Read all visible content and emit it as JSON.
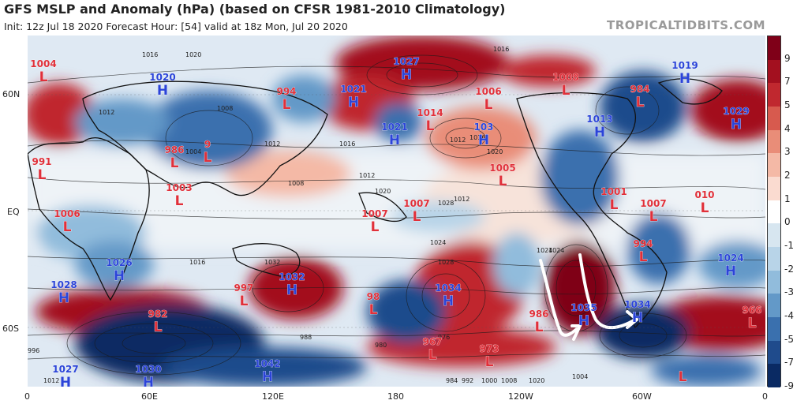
{
  "header": {
    "title": "GFS MSLP and Anomaly (hPa) (based on CFSR 1981-2010 Climatology)",
    "subtitle": "Init: 12z Jul 18 2020   Forecast Hour: [54]   valid at 18z Mon, Jul 20 2020",
    "brand": "TROPICALTIDBITS.COM"
  },
  "axes": {
    "lat_labels": [
      "60N",
      "EQ",
      "60S"
    ],
    "lon_labels": [
      "0",
      "60E",
      "120E",
      "180",
      "120W",
      "60W",
      "0"
    ]
  },
  "colorbar": {
    "labels": [
      "9",
      "7",
      "5",
      "4",
      "3",
      "2",
      "1",
      "0",
      "-1",
      "-2",
      "-3",
      "-4",
      "-5",
      "-7",
      "-9"
    ],
    "colors": [
      "#7f0018",
      "#a3101f",
      "#c0282f",
      "#d75a4e",
      "#e98d78",
      "#f4b9a6",
      "#fadbd0",
      "#ffffff",
      "#d7e6f0",
      "#b8d4e8",
      "#91bcdc",
      "#6399c8",
      "#3a70ae",
      "#1f4b8c",
      "#0a2a63"
    ]
  },
  "pressure_centers": [
    {
      "type": "L",
      "value": "1004",
      "color": "#e0303a"
    },
    {
      "type": "H",
      "value": "1020",
      "color": "#2b44d8"
    },
    {
      "type": "L",
      "value": "994",
      "color": "#e0303a"
    },
    {
      "type": "H",
      "value": "1021",
      "color": "#2b44d8"
    },
    {
      "type": "H",
      "value": "1027",
      "color": "#2b44d8"
    },
    {
      "type": "L",
      "value": "1006",
      "color": "#e0303a"
    },
    {
      "type": "L",
      "value": "1008",
      "color": "#e0303a"
    },
    {
      "type": "H",
      "value": "1019",
      "color": "#2b44d8"
    },
    {
      "type": "L",
      "value": "984",
      "color": "#e0303a"
    },
    {
      "type": "H",
      "value": "1029",
      "color": "#2b44d8"
    },
    {
      "type": "H",
      "value": "1013",
      "color": "#2b44d8"
    },
    {
      "type": "L",
      "value": "1014",
      "color": "#e0303a"
    },
    {
      "type": "H",
      "value": "1021",
      "color": "#2b44d8"
    },
    {
      "type": "H",
      "value": "103",
      "color": "#2b44d8"
    },
    {
      "type": "L",
      "value": "991",
      "color": "#e0303a"
    },
    {
      "type": "L",
      "value": "986",
      "color": "#e0303a"
    },
    {
      "type": "L",
      "value": "9",
      "color": "#e0303a"
    },
    {
      "type": "L",
      "value": "1003",
      "color": "#e0303a"
    },
    {
      "type": "L",
      "value": "1005",
      "color": "#e0303a"
    },
    {
      "type": "L",
      "value": "1006",
      "color": "#e0303a"
    },
    {
      "type": "L",
      "value": "1007",
      "color": "#e0303a"
    },
    {
      "type": "L",
      "value": "1007",
      "color": "#e0303a"
    },
    {
      "type": "L",
      "value": "1001",
      "color": "#e0303a"
    },
    {
      "type": "L",
      "value": "1007",
      "color": "#e0303a"
    },
    {
      "type": "L",
      "value": "010",
      "color": "#e0303a"
    },
    {
      "type": "L",
      "value": "994",
      "color": "#e0303a"
    },
    {
      "type": "H",
      "value": "1024",
      "color": "#2b44d8"
    },
    {
      "type": "H",
      "value": "1026",
      "color": "#2b44d8"
    },
    {
      "type": "H",
      "value": "1028",
      "color": "#2b44d8"
    },
    {
      "type": "L",
      "value": "997",
      "color": "#e0303a"
    },
    {
      "type": "H",
      "value": "1032",
      "color": "#2b44d8"
    },
    {
      "type": "H",
      "value": "1034",
      "color": "#2b44d8"
    },
    {
      "type": "L",
      "value": "98",
      "color": "#e0303a"
    },
    {
      "type": "L",
      "value": "982",
      "color": "#e0303a"
    },
    {
      "type": "L",
      "value": "986",
      "color": "#e0303a"
    },
    {
      "type": "H",
      "value": "1035",
      "color": "#2b44d8"
    },
    {
      "type": "H",
      "value": "1034",
      "color": "#2b44d8"
    },
    {
      "type": "L",
      "value": "966",
      "color": "#e0303a"
    },
    {
      "type": "L",
      "value": "967",
      "color": "#e0303a"
    },
    {
      "type": "L",
      "value": "973",
      "color": "#e0303a"
    },
    {
      "type": "H",
      "value": "1027",
      "color": "#2b44d8"
    },
    {
      "type": "H",
      "value": "1030",
      "color": "#2b44d8"
    },
    {
      "type": "H",
      "value": "1042",
      "color": "#2b44d8"
    },
    {
      "type": "L",
      "value": "",
      "color": "#e0303a"
    }
  ],
  "isobar_labels": [
    "1016",
    "1020",
    "1016",
    "1012",
    "1008",
    "1004",
    "1012",
    "1016",
    "1024",
    "1028",
    "1012",
    "1016",
    "1020",
    "1024",
    "1012",
    "1008",
    "1012",
    "1020",
    "1016",
    "1024",
    "1028",
    "1032",
    "988",
    "980",
    "976",
    "984",
    "992",
    "1000",
    "1008",
    "1020",
    "1004",
    "996",
    "1012"
  ]
}
